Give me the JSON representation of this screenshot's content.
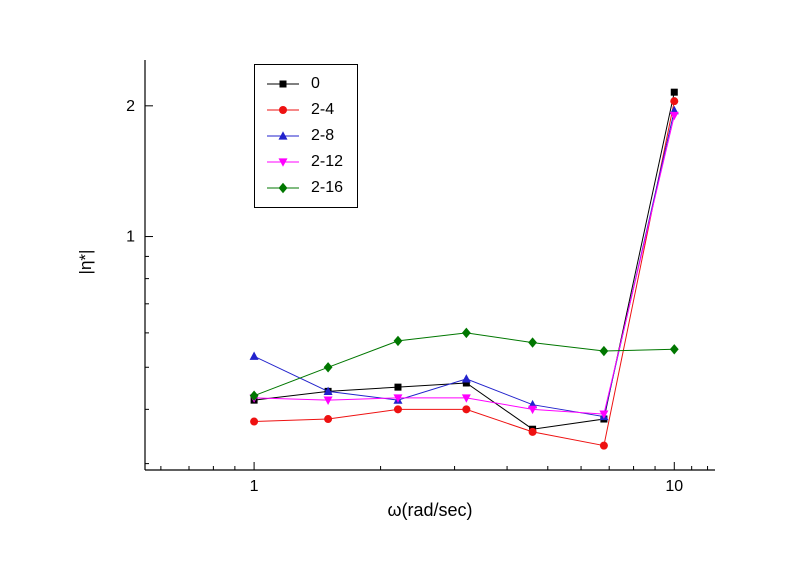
{
  "chart_data": {
    "type": "line",
    "title": "",
    "xlabel": "ω(rad/sec)",
    "ylabel": "|η*|",
    "x_scale": "log",
    "y_scale": "log",
    "xlim": [
      0.55,
      12.5
    ],
    "ylim": [
      0.29,
      2.55
    ],
    "grid": false,
    "legend_position": "top-left-inside",
    "x_major_ticks": [
      1,
      10
    ],
    "x_tick_labels": [
      "1",
      "10"
    ],
    "x_minor_ticks": [
      0.6,
      0.7,
      0.8,
      0.9,
      2,
      3,
      4,
      5,
      6,
      7,
      8,
      9,
      11,
      12
    ],
    "y_major_ticks": [
      1,
      2
    ],
    "y_tick_labels": [
      "1",
      "2"
    ],
    "y_minor_ticks": [
      0.3,
      0.4,
      0.5,
      0.6,
      0.7,
      0.8,
      0.9
    ],
    "x": [
      1,
      1.5,
      2.2,
      3.2,
      4.6,
      6.8,
      10
    ],
    "series": [
      {
        "name": "0",
        "color": "#000000",
        "marker": "square",
        "values": [
          0.42,
          0.44,
          0.45,
          0.46,
          0.36,
          0.38,
          2.15
        ]
      },
      {
        "name": "2-4",
        "color": "#ee1111",
        "marker": "circle",
        "values": [
          0.375,
          0.38,
          0.4,
          0.4,
          0.355,
          0.33,
          2.05
        ]
      },
      {
        "name": "2-8",
        "color": "#2222cc",
        "marker": "triangle-up",
        "values": [
          0.53,
          0.44,
          0.42,
          0.47,
          0.41,
          0.385,
          1.95
        ]
      },
      {
        "name": "2-12",
        "color": "#ff00ff",
        "marker": "triangle-down",
        "values": [
          0.425,
          0.42,
          0.425,
          0.425,
          0.4,
          0.39,
          1.9
        ]
      },
      {
        "name": "2-16",
        "color": "#007700",
        "marker": "diamond",
        "values": [
          0.43,
          0.5,
          0.575,
          0.6,
          0.57,
          0.545,
          0.55
        ]
      }
    ]
  }
}
